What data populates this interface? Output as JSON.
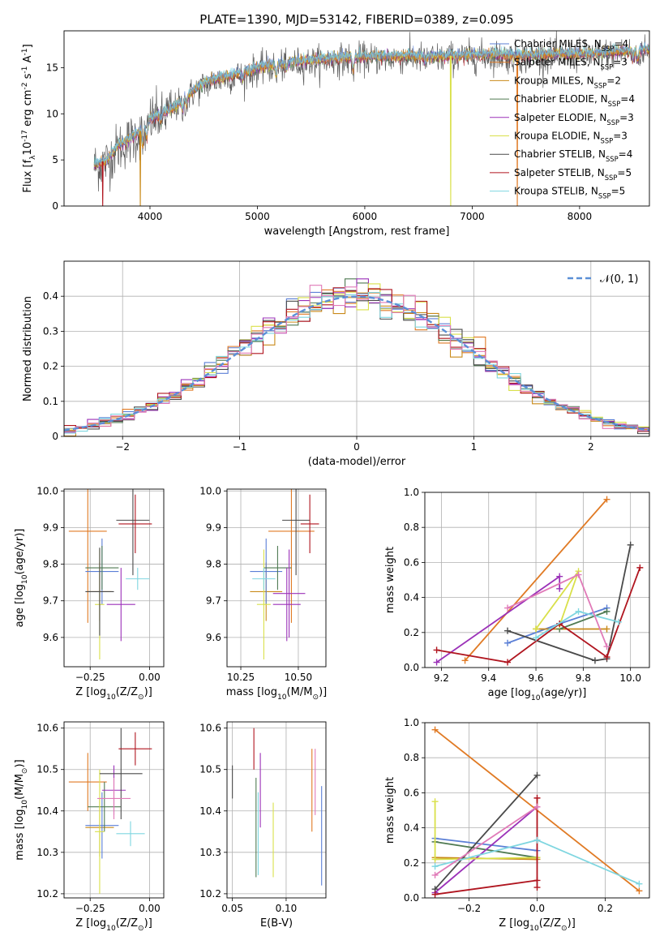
{
  "figure": {
    "title": "PLATE=1390, MJD=53142, FIBERID=0389, z=0.095"
  },
  "colors": {
    "chabrier_miles": "#5b7fd6",
    "salpeter_miles": "#e07a24",
    "kroupa_miles": "#c98a1a",
    "chabrier_elodie": "#4f7a52",
    "salpeter_elodie": "#9b31b8",
    "kroupa_elodie": "#d9e04a",
    "chabrier_stelib": "#4a4a4a",
    "salpeter_stelib": "#b0151f",
    "kroupa_stelib": "#7fd6e0",
    "normal_curve": "#5b8fd6",
    "grid": "#b0b0b0"
  },
  "chart_data": [
    {
      "id": "spectrum",
      "type": "line",
      "xlabel": "wavelength [Angstrom, rest frame]",
      "ylabel": "Flux [f$_{\\lambda}$10$^{-17}$ erg cm$^{-2}$ s$^{-1}$ A$^{-1}$]",
      "xlim": [
        3200,
        8650
      ],
      "ylim": [
        0,
        19
      ],
      "xticks": [
        4000,
        5000,
        6000,
        7000,
        8000
      ],
      "yticks": [
        0,
        5,
        10,
        15
      ],
      "grid": false,
      "legend_position": "upper right",
      "series": [
        {
          "name": "Chabrier MILES, N$_{SSP}$=4",
          "color_key": "chabrier_miles"
        },
        {
          "name": "Salpeter MILES, N$_{SSP}$=3",
          "color_key": "salpeter_miles"
        },
        {
          "name": "Kroupa MILES, N$_{SSP}$=2",
          "color_key": "kroupa_miles"
        },
        {
          "name": "Chabrier ELODIE, N$_{SSP}$=4",
          "color_key": "chabrier_elodie"
        },
        {
          "name": "Salpeter ELODIE, N$_{SSP}$=3",
          "color_key": "salpeter_elodie"
        },
        {
          "name": "Kroupa ELODIE, N$_{SSP}$=3",
          "color_key": "kroupa_elodie"
        },
        {
          "name": "Chabrier STELIB, N$_{SSP}$=4",
          "color_key": "chabrier_stelib"
        },
        {
          "name": "Salpeter STELIB, N$_{SSP}$=5",
          "color_key": "salpeter_stelib"
        },
        {
          "name": "Kroupa STELIB, N$_{SSP}$=5",
          "color_key": "kroupa_stelib"
        }
      ],
      "continuum": {
        "x": [
          3480,
          3600,
          3700,
          3800,
          3900,
          4000,
          4100,
          4200,
          4300,
          4400,
          4500,
          4600,
          4700,
          4800,
          4900,
          5000,
          5200,
          5400,
          5600,
          5800,
          6000,
          6200,
          6400,
          6600,
          6800,
          7000,
          7200,
          7400,
          7600,
          7800,
          8000,
          8200,
          8400,
          8600
        ],
        "y": [
          4.5,
          5.0,
          6.5,
          7.2,
          8.0,
          9.5,
          10.0,
          10.5,
          11.5,
          12.5,
          13.3,
          13.8,
          14.0,
          14.3,
          14.6,
          15.0,
          15.4,
          15.7,
          15.9,
          16.1,
          16.2,
          16.2,
          16.3,
          16.2,
          16.3,
          16.4,
          16.5,
          16.3,
          16.4,
          16.5,
          16.5,
          16.6,
          16.8,
          17.0
        ]
      },
      "absorption_features": [
        {
          "x": 3934,
          "depth": 1.8
        },
        {
          "x": 3969,
          "depth": 1.6
        },
        {
          "x": 4102,
          "depth": 0.8
        },
        {
          "x": 4304,
          "depth": 1.2
        },
        {
          "x": 4341,
          "depth": 0.7
        },
        {
          "x": 4861,
          "depth": 0.8
        },
        {
          "x": 5175,
          "depth": 1.2
        },
        {
          "x": 5270,
          "depth": 0.6
        },
        {
          "x": 5890,
          "depth": 1.4
        },
        {
          "x": 6563,
          "depth": 0.6
        },
        {
          "x": 8498,
          "depth": 0.9
        },
        {
          "x": 8542,
          "depth": 1.1
        },
        {
          "x": 8662,
          "depth": 0.9
        }
      ],
      "glitches": [
        {
          "x": 3560,
          "color_key": "salpeter_stelib"
        },
        {
          "x": 3910,
          "color_key": "kroupa_miles"
        },
        {
          "x": 6800,
          "color_key": "kroupa_elodie"
        },
        {
          "x": 7420,
          "color_key": "salpeter_miles"
        }
      ]
    },
    {
      "id": "residual_histogram",
      "type": "bar",
      "xlabel": "(data-model)/error",
      "ylabel": "Normed distribution",
      "xlim": [
        -2.5,
        2.5
      ],
      "ylim": [
        0,
        0.5
      ],
      "xticks": [
        -2,
        -1,
        0,
        1,
        2
      ],
      "yticks": [
        0.0,
        0.1,
        0.2,
        0.3,
        0.4
      ],
      "grid": true,
      "bin_width": 0.1,
      "legend_position": "upper right",
      "reference": {
        "name": "$\\mathcal{N}(0, 1)$",
        "color_key": "normal_curve"
      }
    },
    {
      "id": "age_vs_Z",
      "type": "scatter",
      "xlabel": "Z [log$_{10}$(Z/Z$_\\odot$)]",
      "ylabel": "age  [log$_{10}$(age/yr)]",
      "xlim": [
        -0.36,
        0.06
      ],
      "ylim": [
        9.52,
        10.005
      ],
      "xticks": [
        -0.25,
        0.0
      ],
      "xticklabels": [
        "−0.25",
        "0.00"
      ],
      "yticks": [
        9.6,
        9.7,
        9.8,
        9.9,
        10.0
      ],
      "yticklabels": [
        "9.6",
        "9.7",
        "9.8",
        "9.9",
        "10.0"
      ],
      "grid": true,
      "points": [
        {
          "x": -0.26,
          "y": 9.89,
          "xerr": 0.08,
          "yerr": 0.25,
          "color_key": "salpeter_miles"
        },
        {
          "x": -0.21,
          "y": 9.725,
          "xerr": 0.05,
          "yerr": 0.08,
          "color_key": "kroupa_miles"
        },
        {
          "x": -0.2,
          "y": 9.78,
          "xerr": 0.07,
          "yerr": 0.09,
          "color_key": "chabrier_miles"
        },
        {
          "x": -0.2,
          "y": 9.79,
          "xerr": 0.07,
          "yerr": 0.06,
          "color_key": "chabrier_elodie"
        },
        {
          "x": -0.21,
          "y": 9.69,
          "xerr": 0.02,
          "yerr": 0.15,
          "color_key": "kroupa_elodie"
        },
        {
          "x": -0.12,
          "y": 9.69,
          "xerr": 0.06,
          "yerr": 0.1,
          "color_key": "salpeter_elodie"
        },
        {
          "x": -0.07,
          "y": 9.92,
          "xerr": 0.07,
          "yerr": 0.15,
          "color_key": "chabrier_stelib"
        },
        {
          "x": -0.06,
          "y": 9.91,
          "xerr": 0.07,
          "yerr": 0.08,
          "color_key": "salpeter_stelib"
        },
        {
          "x": -0.05,
          "y": 9.76,
          "xerr": 0.05,
          "yerr": 0.03,
          "color_key": "kroupa_stelib"
        },
        {
          "x": -0.21,
          "y": 9.725,
          "xerr": 0.06,
          "yerr": 0.12,
          "color_key": "chabrier_stelib"
        }
      ]
    },
    {
      "id": "age_vs_mass",
      "type": "scatter",
      "xlabel": "mass [log$_{10}$(M/M$_\\odot$)]",
      "ylabel": "",
      "xlim": [
        10.19,
        10.62
      ],
      "ylim": [
        9.52,
        10.005
      ],
      "xticks": [
        10.25,
        10.5
      ],
      "xticklabels": [
        "10.25",
        "10.50"
      ],
      "yticks": [
        9.6,
        9.7,
        9.8,
        9.9,
        10.0
      ],
      "yticklabels": [
        "9.6",
        "9.7",
        "9.8",
        "9.9",
        "10.0"
      ],
      "grid": true,
      "points": [
        {
          "x": 10.47,
          "y": 9.89,
          "xerr": 0.1,
          "yerr": 0.25,
          "color_key": "salpeter_miles"
        },
        {
          "x": 10.36,
          "y": 9.725,
          "xerr": 0.07,
          "yerr": 0.08,
          "color_key": "kroupa_miles"
        },
        {
          "x": 10.36,
          "y": 9.78,
          "xerr": 0.07,
          "yerr": 0.09,
          "color_key": "chabrier_miles"
        },
        {
          "x": 10.41,
          "y": 9.79,
          "xerr": 0.06,
          "yerr": 0.06,
          "color_key": "chabrier_elodie"
        },
        {
          "x": 10.35,
          "y": 9.69,
          "xerr": 0.03,
          "yerr": 0.15,
          "color_key": "kroupa_elodie"
        },
        {
          "x": 10.45,
          "y": 9.69,
          "xerr": 0.06,
          "yerr": 0.1,
          "color_key": "salpeter_elodie"
        },
        {
          "x": 10.49,
          "y": 9.92,
          "xerr": 0.06,
          "yerr": 0.15,
          "color_key": "chabrier_stelib"
        },
        {
          "x": 10.55,
          "y": 9.91,
          "xerr": 0.04,
          "yerr": 0.08,
          "color_key": "salpeter_stelib"
        },
        {
          "x": 10.35,
          "y": 9.76,
          "xerr": 0.05,
          "yerr": 0.03,
          "color_key": "kroupa_stelib"
        },
        {
          "x": 10.46,
          "y": 9.72,
          "xerr": 0.07,
          "yerr": 0.12,
          "color_key": "salpeter_elodie"
        }
      ]
    },
    {
      "id": "massweight_vs_age",
      "type": "line",
      "xlabel": "age  [log$_{10}$(age/yr)]",
      "ylabel": "mass weight",
      "xlim": [
        9.13,
        10.08
      ],
      "ylim": [
        0,
        1
      ],
      "xticks": [
        9.2,
        9.4,
        9.6,
        9.8,
        10.0
      ],
      "xticklabels": [
        "9.2",
        "9.4",
        "9.6",
        "9.8",
        "10.0"
      ],
      "yticks": [
        0,
        0.2,
        0.4,
        0.6,
        0.8,
        1.0
      ],
      "yticklabels": [
        "0.0",
        "0.2",
        "0.4",
        "0.6",
        "0.8",
        "1.0"
      ],
      "grid": true,
      "series": [
        {
          "color_key": "chabrier_miles",
          "x": [
            9.48,
            9.7,
            9.9
          ],
          "y": [
            0.14,
            0.25,
            0.34
          ]
        },
        {
          "color_key": "salpeter_miles",
          "x": [
            9.3,
            9.9
          ],
          "y": [
            0.04,
            0.96
          ]
        },
        {
          "color_key": "kroupa_miles",
          "x": [
            9.6,
            9.9
          ],
          "y": [
            0.22,
            0.22
          ]
        },
        {
          "color_key": "chabrier_elodie",
          "x": [
            9.7,
            9.9
          ],
          "y": [
            0.22,
            0.32
          ]
        },
        {
          "color_key": "salpeter_elodie",
          "x": [
            9.18,
            9.7,
            9.7
          ],
          "y": [
            0.03,
            0.52,
            0.45
          ]
        },
        {
          "color_key": "kroupa_elodie",
          "x": [
            9.6,
            9.78,
            9.7
          ],
          "y": [
            0.22,
            0.55,
            0.24
          ]
        },
        {
          "color_key": "chabrier_stelib",
          "x": [
            9.48,
            9.85,
            9.9,
            10.0
          ],
          "y": [
            0.21,
            0.04,
            0.05,
            0.7
          ]
        },
        {
          "color_key": "salpeter_stelib",
          "x": [
            9.18,
            9.48,
            9.7,
            9.9,
            10.04
          ],
          "y": [
            0.1,
            0.03,
            0.25,
            0.06,
            0.57
          ]
        },
        {
          "color_key": "kroupa_stelib",
          "x": [
            9.6,
            9.78,
            9.95
          ],
          "y": [
            0.17,
            0.32,
            0.26
          ]
        },
        {
          "color_key": "salpeter_elodie_pink",
          "x": [
            9.48,
            9.78,
            9.9
          ],
          "y": [
            0.34,
            0.53,
            0.12
          ]
        }
      ]
    },
    {
      "id": "mass_vs_Z",
      "type": "scatter",
      "xlabel": "Z [log$_{10}$(Z/Z$_\\odot$)]",
      "ylabel": "mass [log$_{10}$(M/M$_\\odot$)]",
      "xlim": [
        -0.36,
        0.06
      ],
      "ylim": [
        10.19,
        10.615
      ],
      "xticks": [
        -0.25,
        0.0
      ],
      "xticklabels": [
        "−0.25",
        "0.00"
      ],
      "yticks": [
        10.2,
        10.3,
        10.4,
        10.5,
        10.6
      ],
      "yticklabels": [
        "10.2",
        "10.3",
        "10.4",
        "10.5",
        "10.6"
      ],
      "grid": true,
      "points": [
        {
          "x": -0.26,
          "y": 10.47,
          "xerr": 0.08,
          "yerr": 0.07,
          "color_key": "salpeter_miles"
        },
        {
          "x": -0.21,
          "y": 10.36,
          "xerr": 0.06,
          "yerr": 0.07,
          "color_key": "kroupa_miles"
        },
        {
          "x": -0.2,
          "y": 10.365,
          "xerr": 0.07,
          "yerr": 0.08,
          "color_key": "chabrier_miles"
        },
        {
          "x": -0.19,
          "y": 10.41,
          "xerr": 0.07,
          "yerr": 0.06,
          "color_key": "chabrier_elodie"
        },
        {
          "x": -0.21,
          "y": 10.35,
          "xerr": 0.02,
          "yerr": 0.15,
          "color_key": "kroupa_elodie"
        },
        {
          "x": -0.15,
          "y": 10.45,
          "xerr": 0.05,
          "yerr": 0.06,
          "color_key": "salpeter_elodie"
        },
        {
          "x": -0.12,
          "y": 10.49,
          "xerr": 0.09,
          "yerr": 0.11,
          "color_key": "chabrier_stelib"
        },
        {
          "x": -0.06,
          "y": 10.55,
          "xerr": 0.07,
          "yerr": 0.04,
          "color_key": "salpeter_stelib"
        },
        {
          "x": -0.08,
          "y": 10.345,
          "xerr": 0.06,
          "yerr": 0.03,
          "color_key": "kroupa_stelib"
        },
        {
          "x": -0.15,
          "y": 10.43,
          "xerr": 0.07,
          "yerr": 0.05,
          "color_key": "salpeter_elodie_pink"
        }
      ]
    },
    {
      "id": "mass_vs_ebv",
      "type": "scatter",
      "xlabel": "E(B-V)",
      "ylabel": "",
      "xlim": [
        0.045,
        0.137
      ],
      "ylim": [
        10.19,
        10.615
      ],
      "xticks": [
        0.05,
        0.1
      ],
      "xticklabels": [
        "0.05",
        "0.10"
      ],
      "yticks": [
        10.2,
        10.3,
        10.4,
        10.5,
        10.6
      ],
      "yticklabels": [
        "10.2",
        "10.3",
        "10.4",
        "10.5",
        "10.6"
      ],
      "grid": true,
      "points": [
        {
          "x": 0.05,
          "y": 10.47,
          "yerr": 0.04,
          "color_key": "chabrier_stelib"
        },
        {
          "x": 0.07,
          "y": 10.55,
          "yerr": 0.05,
          "color_key": "salpeter_stelib"
        },
        {
          "x": 0.072,
          "y": 10.36,
          "yerr": 0.12,
          "color_key": "chabrier_elodie"
        },
        {
          "x": 0.074,
          "y": 10.345,
          "yerr": 0.1,
          "color_key": "kroupa_stelib"
        },
        {
          "x": 0.076,
          "y": 10.45,
          "yerr": 0.09,
          "color_key": "salpeter_elodie"
        },
        {
          "x": 0.088,
          "y": 10.33,
          "yerr": 0.09,
          "color_key": "kroupa_elodie"
        },
        {
          "x": 0.124,
          "y": 10.45,
          "yerr": 0.1,
          "color_key": "salpeter_miles"
        },
        {
          "x": 0.127,
          "y": 10.47,
          "yerr": 0.08,
          "color_key": "salpeter_elodie_pink"
        },
        {
          "x": 0.133,
          "y": 10.34,
          "yerr": 0.12,
          "color_key": "chabrier_miles"
        }
      ]
    },
    {
      "id": "massweight_vs_Z",
      "type": "line",
      "xlabel": "Z [log$_{10}$(Z/Z$_\\odot$)]",
      "ylabel": "mass weight",
      "xlim": [
        -0.33,
        0.33
      ],
      "ylim": [
        0,
        1
      ],
      "xticks": [
        -0.2,
        0.0,
        0.2
      ],
      "xticklabels": [
        "−0.2",
        "0.0",
        "0.2"
      ],
      "yticks": [
        0,
        0.2,
        0.4,
        0.6,
        0.8,
        1.0
      ],
      "yticklabels": [
        "0.0",
        "0.2",
        "0.4",
        "0.6",
        "0.8",
        "1.0"
      ],
      "grid": true,
      "series": [
        {
          "color_key": "chabrier_miles",
          "x": [
            -0.3,
            0.0
          ],
          "y": [
            0.34,
            0.27
          ]
        },
        {
          "color_key": "salpeter_miles",
          "x": [
            -0.3,
            0.3
          ],
          "y": [
            0.96,
            0.04
          ]
        },
        {
          "color_key": "kroupa_miles",
          "x": [
            -0.3,
            0.0
          ],
          "y": [
            0.23,
            0.22
          ]
        },
        {
          "color_key": "chabrier_elodie",
          "x": [
            -0.3,
            0.0
          ],
          "y": [
            0.32,
            0.23
          ]
        },
        {
          "color_key": "salpeter_elodie",
          "x": [
            -0.3,
            0.0
          ],
          "y": [
            0.03,
            0.52
          ]
        },
        {
          "color_key": "kroupa_elodie",
          "x": [
            -0.3,
            -0.3,
            0.0
          ],
          "y": [
            0.55,
            0.22,
            0.23
          ]
        },
        {
          "color_key": "chabrier_stelib",
          "x": [
            -0.3,
            0.0
          ],
          "y": [
            0.05,
            0.7
          ]
        },
        {
          "color_key": "salpeter_stelib",
          "x": [
            -0.3,
            0.0,
            0.0,
            0.0
          ],
          "y": [
            0.02,
            0.1,
            0.57,
            0.06
          ]
        },
        {
          "color_key": "kroupa_stelib",
          "x": [
            -0.3,
            0.0,
            0.3
          ],
          "y": [
            0.18,
            0.33,
            0.08
          ]
        },
        {
          "color_key": "salpeter_elodie_pink",
          "x": [
            -0.3,
            0.0
          ],
          "y": [
            0.13,
            0.52
          ]
        }
      ]
    }
  ]
}
